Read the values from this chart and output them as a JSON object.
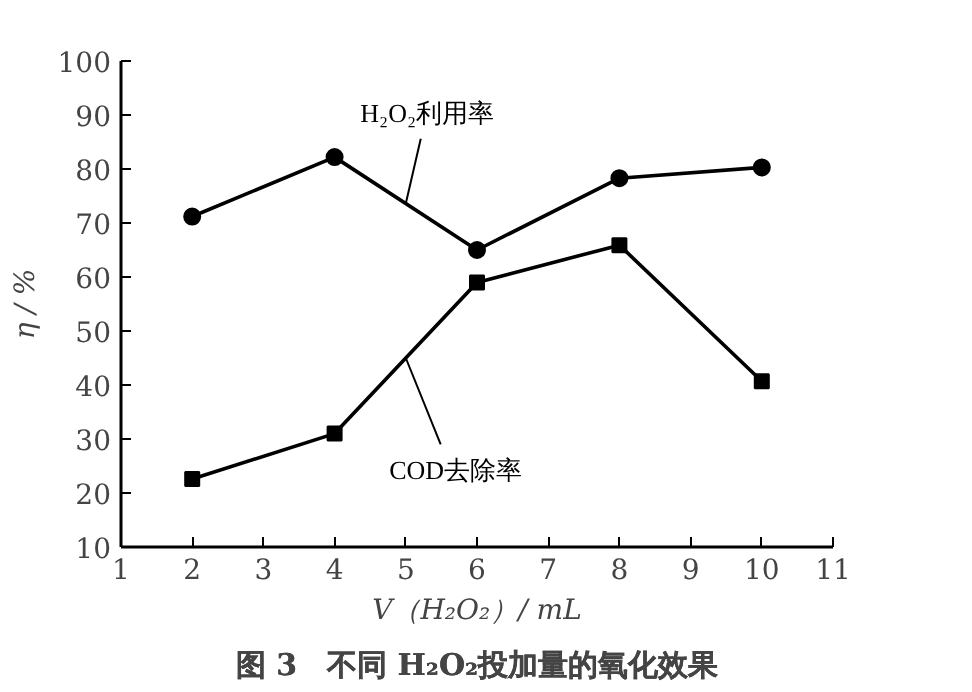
{
  "chart_data": {
    "type": "line",
    "title": "图 3　不同 H₂O₂投加量的氧化效果",
    "xlabel": "V（H₂O₂）/ mL",
    "ylabel": "η / %",
    "x": [
      2,
      4,
      6,
      8,
      10
    ],
    "series": [
      {
        "name": "H₂O₂利用率",
        "color": "#000000",
        "marker": "circle",
        "values": [
          71.2,
          82.2,
          65,
          78.3,
          80.3
        ]
      },
      {
        "name": "COD去除率",
        "color": "#000000",
        "marker": "square",
        "values": [
          22.6,
          31,
          59,
          65.9,
          40.7
        ]
      }
    ],
    "xlim": [
      1,
      11
    ],
    "xticks": [
      1,
      2,
      3,
      4,
      5,
      6,
      7,
      8,
      9,
      10,
      11
    ],
    "ylim": [
      10,
      100
    ],
    "yticks": [
      10,
      20,
      30,
      40,
      50,
      60,
      70,
      80,
      90,
      100
    ],
    "grid": false,
    "line_style": "solid"
  }
}
